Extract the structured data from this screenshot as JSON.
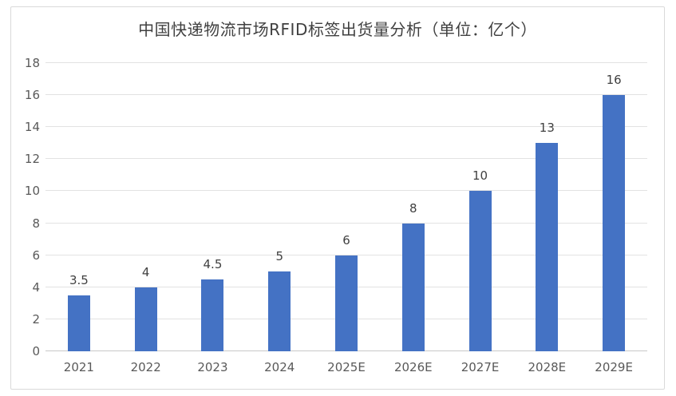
{
  "chart_data": {
    "type": "bar",
    "title": "中国快递物流市场RFID标签出货量分析（单位：亿个）",
    "categories": [
      "2021",
      "2022",
      "2023",
      "2024",
      "2025E",
      "2026E",
      "2027E",
      "2028E",
      "2029E"
    ],
    "values": [
      3.5,
      4,
      4.5,
      5,
      6,
      8,
      10,
      13,
      16
    ],
    "data_labels": [
      "3.5",
      "4",
      "4.5",
      "5",
      "6",
      "8",
      "10",
      "13",
      "16"
    ],
    "xlabel": "",
    "ylabel": "",
    "ylim": [
      0,
      18
    ],
    "ytick_step": 2,
    "ytick_labels": [
      "0",
      "2",
      "4",
      "6",
      "8",
      "10",
      "12",
      "14",
      "16",
      "18"
    ],
    "grid": true,
    "legend": "none",
    "colors": {
      "bar": "#4472c4",
      "title_text": "#404040",
      "axis_text": "#595959",
      "data_label_text": "#404040",
      "gridline": "#e2e2e2",
      "axis_line": "#c8c8c8",
      "frame_border": "#d9d9d9",
      "background": "#ffffff"
    }
  }
}
